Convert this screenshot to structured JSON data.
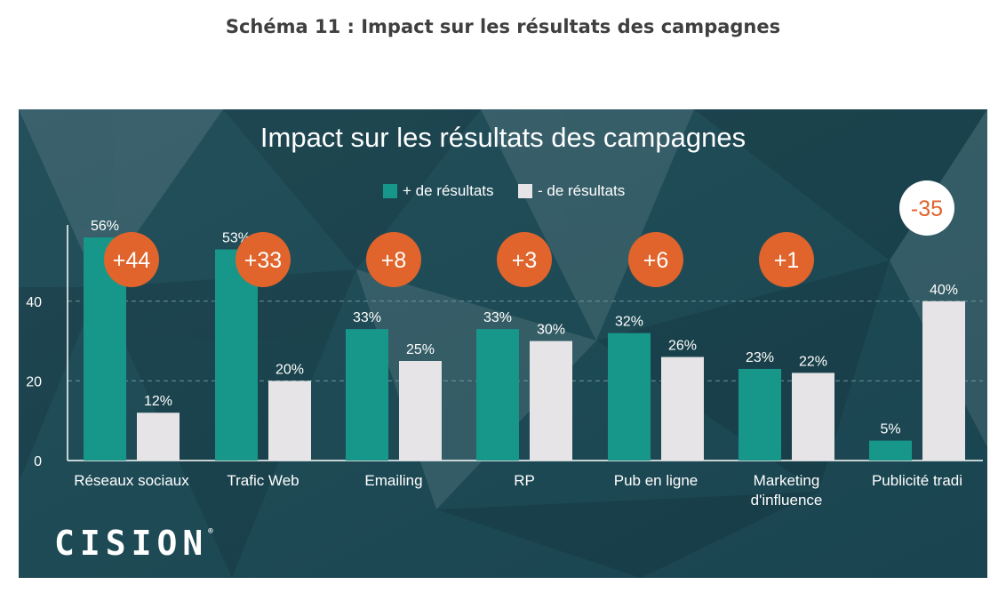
{
  "caption": "Schéma 11 : Impact sur les résultats des campagnes",
  "brand": "CISION",
  "colors": {
    "background": "#1f4d58",
    "plus": "#17978a",
    "minus": "#e6e4e6",
    "badge": "#e0642b",
    "badge_negative_bg": "#ffffff"
  },
  "chart_data": {
    "type": "bar",
    "title": "Impact sur les résultats des campagnes",
    "xlabel": "",
    "ylabel": "",
    "ylim": [
      0,
      60
    ],
    "yticks": [
      0,
      20,
      40
    ],
    "grid": "dashed horizontal at 20 and 40",
    "legend_position": "top-center",
    "categories": [
      "Réseaux sociaux",
      "Trafic Web",
      "Emailing",
      "RP",
      "Pub en ligne",
      "Marketing d'influence",
      "Publicité tradi"
    ],
    "series": [
      {
        "name": "+ de résultats",
        "values": [
          56,
          53,
          33,
          33,
          32,
          23,
          5
        ],
        "labels": [
          "56%",
          "53%",
          "33%",
          "33%",
          "32%",
          "23%",
          "5%"
        ]
      },
      {
        "name": "- de résultats",
        "values": [
          12,
          20,
          25,
          30,
          26,
          22,
          40
        ],
        "labels": [
          "12%",
          "20%",
          "25%",
          "30%",
          "26%",
          "22%",
          "40%"
        ]
      }
    ],
    "differences": [
      "+44",
      "+33",
      "+8",
      "+3",
      "+6",
      "+1",
      "-35"
    ]
  }
}
